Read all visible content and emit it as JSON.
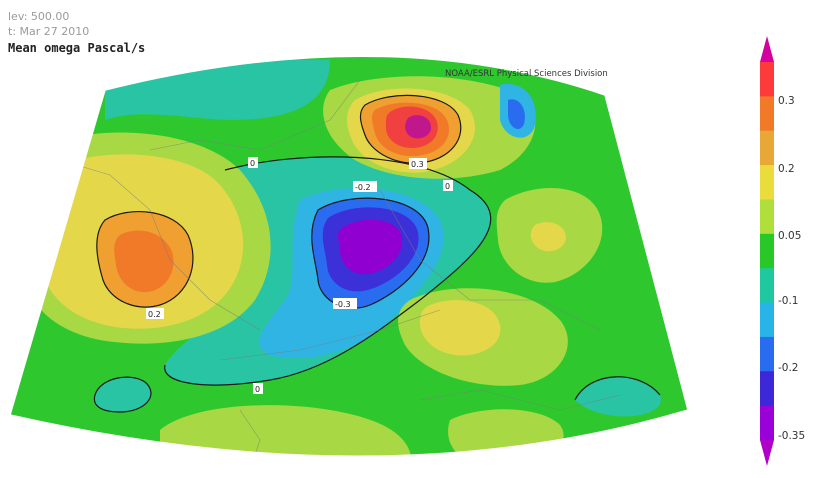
{
  "header": {
    "level": "lev: 500.00",
    "date": "t: Mar 27 2010",
    "title": "Mean omega Pascal/s",
    "source": "NOAA/ESRL Physical Sciences Division"
  },
  "colorbar": {
    "ticks": [
      "0.3",
      "0.2",
      "0.05",
      "-0.1",
      "-0.2",
      "-0.35"
    ],
    "colors": [
      "#d400a0",
      "#ff3a3a",
      "#f07a28",
      "#e8a838",
      "#eadc3a",
      "#b0de3a",
      "#28c828",
      "#20c8a0",
      "#28b4e8",
      "#2a6cf0",
      "#3c28d8",
      "#9a00d8",
      "#b000c8"
    ]
  },
  "map": {
    "contour_labels": [
      "0",
      "0.3",
      "0",
      "-0.2",
      "0.2",
      "-0.3",
      "0"
    ],
    "palette": {
      "green": "#2ec82e",
      "lightgreen": "#a8d844",
      "yellow": "#e4d84a",
      "orange": "#f0a030",
      "darkorange": "#f07a28",
      "red": "#f04040",
      "magenta": "#c0188c",
      "teal": "#28c4a4",
      "cyan": "#30b4e4",
      "blue": "#2a6cf0",
      "indigo": "#3c30d8",
      "purple": "#9000d0"
    }
  }
}
